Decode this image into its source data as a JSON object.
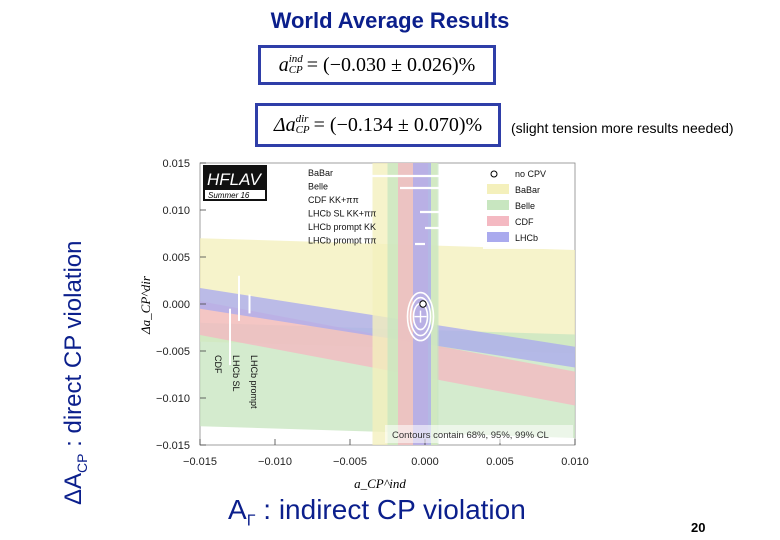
{
  "slide": {
    "title": "World Average Results",
    "aside": "(slight tension more results needed)",
    "ylabel_main": "ΔA",
    "ylabel_sub": "CP",
    "ylabel_rest": " : direct CP violation",
    "xlabel_main": "A",
    "xlabel_sub": "Γ",
    "xlabel_rest": " : indirect CP violation",
    "page_number": "20"
  },
  "equations": {
    "indirect": {
      "symbol": "a",
      "sup": "ind",
      "sub": "CP",
      "value": "= (−0.030 ± 0.026)%"
    },
    "direct": {
      "symbol": "Δa",
      "sup": "dir",
      "sub": "CP",
      "value": "= (−0.134 ± 0.070)%"
    }
  },
  "chart_data": {
    "type": "scatter",
    "title": "",
    "badge": "HFLAV",
    "badge_sub": "Summer 16",
    "xlabel": "a_CP^ind",
    "ylabel": "Δa_CP^dir",
    "xlim": [
      -0.015,
      0.01
    ],
    "ylim": [
      -0.015,
      0.015
    ],
    "x_ticks": [
      "−0.015",
      "−0.010",
      "−0.005",
      "0.000",
      "0.005",
      "0.010"
    ],
    "x_tick_values": [
      -0.015,
      -0.01,
      -0.005,
      0.0,
      0.005,
      0.01
    ],
    "y_ticks": [
      "0.015",
      "0.010",
      "0.005",
      "0.000",
      "−0.005",
      "−0.010",
      "−0.015"
    ],
    "y_tick_values": [
      0.015,
      0.01,
      0.005,
      0.0,
      -0.005,
      -0.01,
      -0.015
    ],
    "experiment_colors": {
      "BaBar": "#f4f0bc",
      "Belle": "#c8e6c0",
      "CDF": "#f4b9c2",
      "LHCb": "#aaaaee"
    },
    "legend_left": [
      "BaBar",
      "Belle",
      "CDF KK+ππ",
      "LHCb SL KK+ππ",
      "LHCb prompt KK",
      "LHCb prompt ππ"
    ],
    "legend_right": [
      "no CPV",
      "BaBar",
      "Belle",
      "CDF",
      "LHCb"
    ],
    "vertical_labels": [
      "CDF",
      "LHCb SL",
      "LHCb prompt"
    ],
    "contour_note": "Contours contain 68%, 95%, 99% CL",
    "world_average": {
      "x": -0.0003,
      "y": -0.00134
    },
    "no_cpv_point": {
      "x": 0.0,
      "y": 0.0
    },
    "bands": [
      {
        "name": "BaBar",
        "kind": "diag",
        "center_at_xmin": 0.0015,
        "slope": -0.05,
        "halfwidth": 0.0055
      },
      {
        "name": "Belle",
        "kind": "diag",
        "center_at_xmin": -0.0075,
        "slope": -0.05,
        "halfwidth": 0.0055
      },
      {
        "name": "CDF",
        "kind": "diag",
        "center_at_xmin": -0.0015,
        "slope": -0.3,
        "halfwidth": 0.0018
      },
      {
        "name": "LHCb",
        "kind": "diag",
        "center_at_xmin": 0.0006,
        "slope": -0.25,
        "halfwidth": 0.0011
      },
      {
        "name": "BaBar",
        "kind": "vert",
        "x_low": -0.0035,
        "x_high": 0.0008
      },
      {
        "name": "Belle",
        "kind": "vert",
        "x_low": -0.0025,
        "x_high": 0.0009
      },
      {
        "name": "CDF",
        "kind": "vert",
        "x_low": -0.0018,
        "x_high": 0.0002
      },
      {
        "name": "LHCb",
        "kind": "vert",
        "x_low": -0.0008,
        "x_high": 0.0004
      }
    ]
  }
}
